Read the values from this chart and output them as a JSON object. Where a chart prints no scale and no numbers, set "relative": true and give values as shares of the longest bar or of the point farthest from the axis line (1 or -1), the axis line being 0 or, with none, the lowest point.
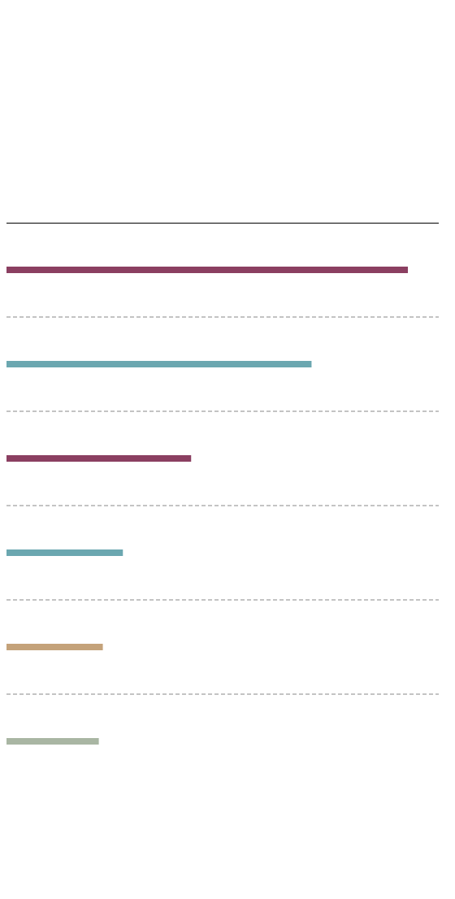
{
  "chart_data": {
    "type": "bar",
    "orientation": "horizontal",
    "relative": true,
    "grid": true,
    "categories": [
      null,
      null,
      null,
      null,
      null,
      null
    ],
    "values": [
      1,
      0.76,
      0.46,
      0.29,
      0.24,
      0.23
    ],
    "colors": [
      "#8b3f61",
      "#6ba7b0",
      "#8b3f61",
      "#6ba7b0",
      "#c4a27a",
      "#a9b6a3"
    ]
  }
}
